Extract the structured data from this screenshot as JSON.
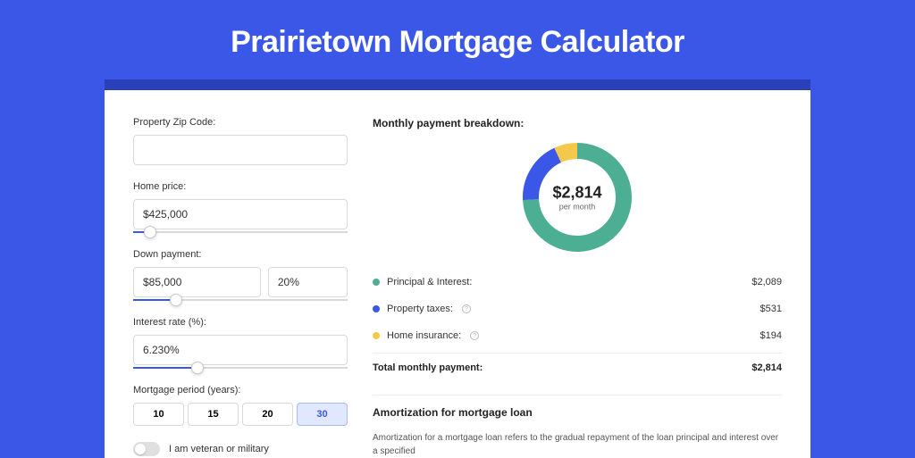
{
  "page": {
    "title": "Prairietown Mortgage Calculator",
    "background_color": "#3a57e8",
    "card_border_color": "#2a3fb8"
  },
  "form": {
    "zip": {
      "label": "Property Zip Code:",
      "value": ""
    },
    "home_price": {
      "label": "Home price:",
      "value": "$425,000",
      "slider_pct": 8
    },
    "down_payment": {
      "label": "Down payment:",
      "amount": "$85,000",
      "percent": "20%",
      "slider_pct": 20
    },
    "interest": {
      "label": "Interest rate (%):",
      "value": "6.230%",
      "slider_pct": 30
    },
    "period": {
      "label": "Mortgage period (years):",
      "options": [
        "10",
        "15",
        "20",
        "30"
      ],
      "selected": "30"
    },
    "veteran": {
      "label": "I am veteran or military",
      "checked": false
    }
  },
  "breakdown": {
    "title": "Monthly payment breakdown:",
    "donut": {
      "value": "$2,814",
      "sub": "per month",
      "segments": [
        {
          "name": "principal_interest",
          "color": "#4caf93",
          "pct": 74.2
        },
        {
          "name": "property_taxes",
          "color": "#3a57e8",
          "pct": 18.9
        },
        {
          "name": "home_insurance",
          "color": "#f4c94b",
          "pct": 6.9
        }
      ],
      "stroke_width": 18,
      "radius": 52
    },
    "items": [
      {
        "label": "Principal & Interest:",
        "color": "#4caf93",
        "value": "$2,089",
        "info": false
      },
      {
        "label": "Property taxes:",
        "color": "#3a57e8",
        "value": "$531",
        "info": true
      },
      {
        "label": "Home insurance:",
        "color": "#f4c94b",
        "value": "$194",
        "info": true
      }
    ],
    "total": {
      "label": "Total monthly payment:",
      "value": "$2,814"
    }
  },
  "amortization": {
    "title": "Amortization for mortgage loan",
    "text": "Amortization for a mortgage loan refers to the gradual repayment of the loan principal and interest over a specified"
  }
}
